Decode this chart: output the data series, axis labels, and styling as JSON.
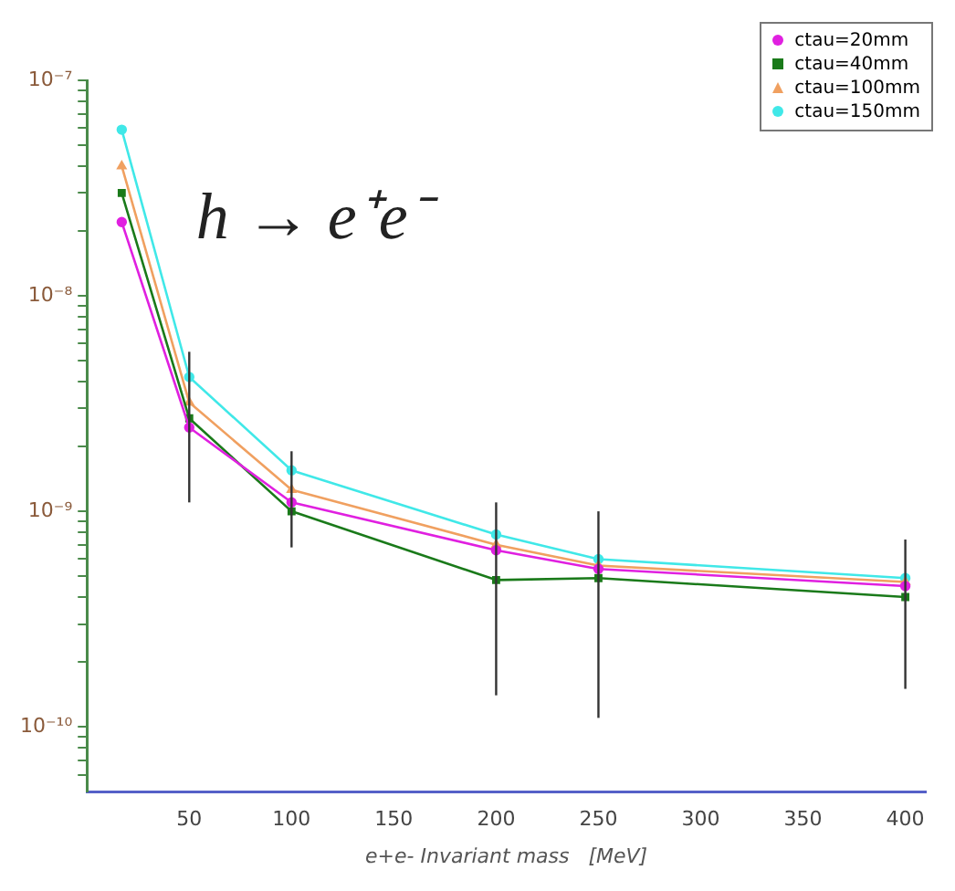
{
  "chart_data": {
    "type": "line",
    "title": "h → e⁺e⁻",
    "xlabel": "e+e- Invariant mass   [MeV]",
    "x": [
      17,
      50,
      100,
      200,
      250,
      400
    ],
    "series": [
      {
        "name": "ctau=20mm",
        "color": "#e020e0",
        "marker": "circle",
        "values": [
          2.2e-08,
          2.45e-09,
          1.1e-09,
          6.6e-10,
          5.4e-10,
          4.5e-10
        ]
      },
      {
        "name": "ctau=40mm",
        "color": "#1a7a1a",
        "marker": "square",
        "values": [
          3e-08,
          2.7e-09,
          1e-09,
          4.8e-10,
          4.9e-10,
          4e-10
        ],
        "errors": [
          null,
          [
            1.1e-09,
            5.5e-09
          ],
          [
            6.8e-10,
            1.9e-09
          ],
          [
            1.4e-10,
            1.1e-09
          ],
          [
            1.1e-10,
            1e-09
          ],
          [
            1.5e-10,
            7.4e-10
          ]
        ]
      },
      {
        "name": "ctau=100mm",
        "color": "#f0a060",
        "marker": "triangle",
        "values": [
          4e-08,
          3.2e-09,
          1.26e-09,
          7e-10,
          5.6e-10,
          4.7e-10
        ]
      },
      {
        "name": "ctau=150mm",
        "color": "#40e8e8",
        "marker": "circle",
        "values": [
          5.9e-08,
          4.2e-09,
          1.55e-09,
          7.8e-10,
          6e-10,
          4.9e-10
        ]
      }
    ],
    "log": "y",
    "xlim": [
      0,
      410
    ],
    "xticks": [
      50,
      100,
      150,
      200,
      250,
      300,
      350,
      400
    ],
    "ylim": [
      5e-11,
      1e-07
    ],
    "yticks": [
      {
        "value": 6e-11,
        "label": null
      },
      {
        "value": 7e-11,
        "label": null
      },
      {
        "value": 8e-11,
        "label": null
      },
      {
        "value": 9e-11,
        "label": null
      },
      {
        "value": 1e-10,
        "label": "10⁻¹⁰"
      },
      {
        "value": 2e-10,
        "label": null
      },
      {
        "value": 3e-10,
        "label": null
      },
      {
        "value": 4e-10,
        "label": null
      },
      {
        "value": 5e-10,
        "label": null
      },
      {
        "value": 6e-10,
        "label": null
      },
      {
        "value": 7e-10,
        "label": null
      },
      {
        "value": 8e-10,
        "label": null
      },
      {
        "value": 9e-10,
        "label": null
      },
      {
        "value": 1e-09,
        "label": "10⁻⁹"
      },
      {
        "value": 2e-09,
        "label": null
      },
      {
        "value": 3e-09,
        "label": null
      },
      {
        "value": 4e-09,
        "label": null
      },
      {
        "value": 5e-09,
        "label": null
      },
      {
        "value": 6e-09,
        "label": null
      },
      {
        "value": 7e-09,
        "label": null
      },
      {
        "value": 8e-09,
        "label": null
      },
      {
        "value": 9e-09,
        "label": null
      },
      {
        "value": 1e-08,
        "label": "10⁻⁸"
      },
      {
        "value": 2e-08,
        "label": null
      },
      {
        "value": 3e-08,
        "label": null
      },
      {
        "value": 4e-08,
        "label": null
      },
      {
        "value": 5e-08,
        "label": null
      },
      {
        "value": 6e-08,
        "label": null
      },
      {
        "value": 7e-08,
        "label": null
      },
      {
        "value": 8e-08,
        "label": null
      },
      {
        "value": 9e-08,
        "label": null
      },
      {
        "value": 1e-07,
        "label": "10⁻⁷"
      }
    ],
    "grid": false,
    "legend": "top right",
    "line_style": "solid"
  }
}
